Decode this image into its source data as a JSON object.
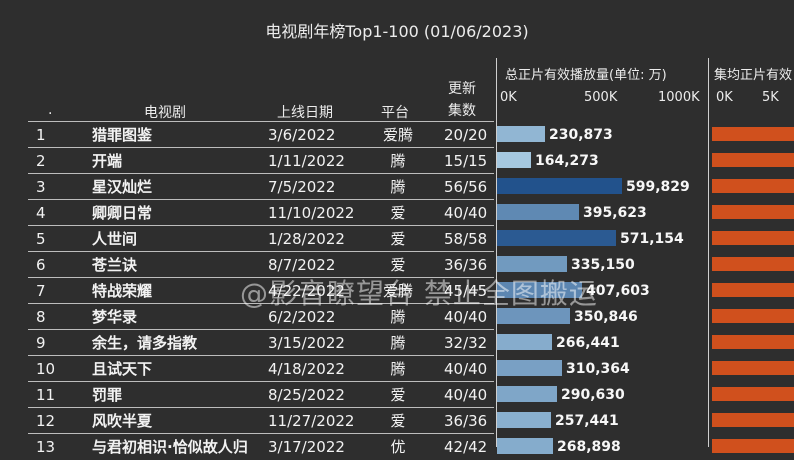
{
  "title": "电视剧年榜Top1-100 (01/06/2023)",
  "headers": {
    "dot": ".",
    "drama": "电视剧",
    "date": "上线日期",
    "platform": "平台",
    "update_line1": "更新",
    "update_line2": "集数"
  },
  "watermark": "@影音瞭望台 禁止全图搬运",
  "colors": {
    "background": "#2e2e2e",
    "bar_light": "#a9cce3",
    "bar_dark": "#1f4f8a",
    "bar2": "#d0501d"
  },
  "chart_data": {
    "type": "bar",
    "title": "电视剧年榜Top1-100 (01/06/2023)",
    "panels": [
      {
        "axis_title": "总正片有效播放量(单位: 万)",
        "ticks": [
          "0K",
          "500K",
          "1000K"
        ],
        "xlim": [
          0,
          1000000
        ]
      },
      {
        "axis_title": "集均正片有效",
        "ticks": [
          "0K",
          "5K"
        ]
      }
    ],
    "rows": [
      {
        "rank": "1",
        "name": "猎罪图鉴",
        "date": "3/6/2022",
        "platform": "爱腾",
        "episodes": "20/20",
        "value": 230873,
        "label": "230,873"
      },
      {
        "rank": "2",
        "name": "开端",
        "date": "1/11/2022",
        "platform": "腾",
        "episodes": "15/15",
        "value": 164273,
        "label": "164,273"
      },
      {
        "rank": "3",
        "name": "星汉灿烂",
        "date": "7/5/2022",
        "platform": "腾",
        "episodes": "56/56",
        "value": 599829,
        "label": "599,829"
      },
      {
        "rank": "4",
        "name": "卿卿日常",
        "date": "11/10/2022",
        "platform": "爱",
        "episodes": "40/40",
        "value": 395623,
        "label": "395,623"
      },
      {
        "rank": "5",
        "name": "人世间",
        "date": "1/28/2022",
        "platform": "爱",
        "episodes": "58/58",
        "value": 571154,
        "label": "571,154"
      },
      {
        "rank": "6",
        "name": "苍兰诀",
        "date": "8/7/2022",
        "platform": "爱",
        "episodes": "36/36",
        "value": 335150,
        "label": "335,150"
      },
      {
        "rank": "7",
        "name": "特战荣耀",
        "date": "4/22/2022",
        "platform": "爱腾",
        "episodes": "45/45",
        "value": 407603,
        "label": "407,603"
      },
      {
        "rank": "8",
        "name": "梦华录",
        "date": "6/2/2022",
        "platform": "腾",
        "episodes": "40/40",
        "value": 350846,
        "label": "350,846"
      },
      {
        "rank": "9",
        "name": "余生，请多指教",
        "date": "3/15/2022",
        "platform": "腾",
        "episodes": "32/32",
        "value": 266441,
        "label": "266,441"
      },
      {
        "rank": "10",
        "name": "且试天下",
        "date": "4/18/2022",
        "platform": "腾",
        "episodes": "40/40",
        "value": 310364,
        "label": "310,364"
      },
      {
        "rank": "11",
        "name": "罚罪",
        "date": "8/25/2022",
        "platform": "爱",
        "episodes": "40/40",
        "value": 290630,
        "label": "290,630"
      },
      {
        "rank": "12",
        "name": "风吹半夏",
        "date": "11/27/2022",
        "platform": "爱",
        "episodes": "36/36",
        "value": 257441,
        "label": "257,441"
      },
      {
        "rank": "13",
        "name": "与君初相识·恰似故人归",
        "date": "3/17/2022",
        "platform": "优",
        "episodes": "42/42",
        "value": 268898,
        "label": "268,898"
      }
    ]
  }
}
